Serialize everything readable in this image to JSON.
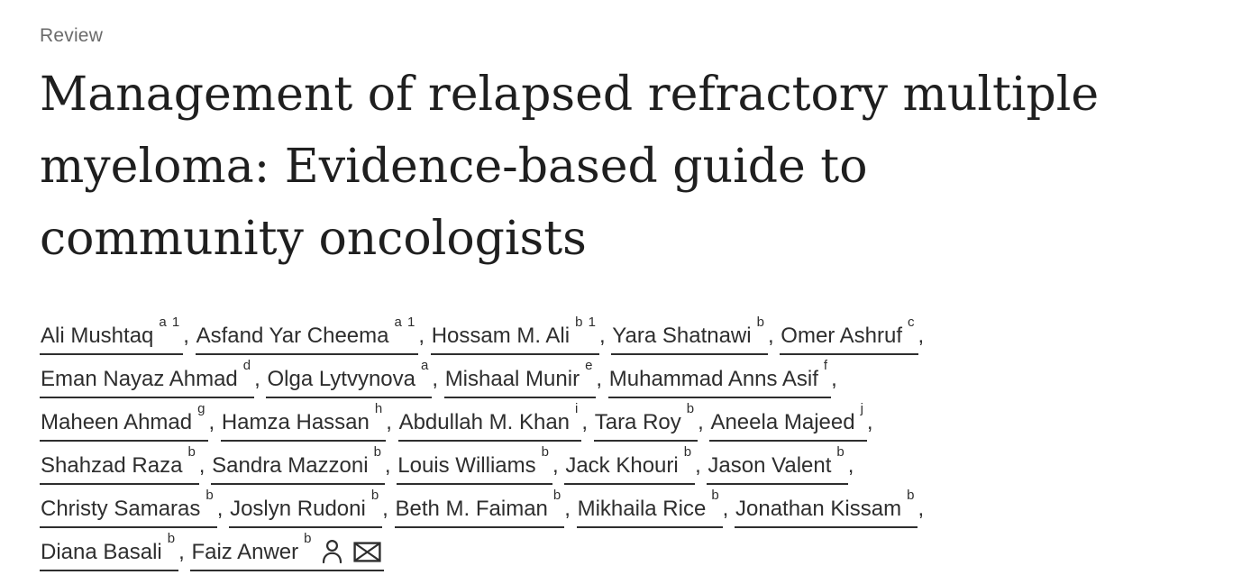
{
  "header": {
    "category_label": "Review"
  },
  "title": {
    "full": "Management of relapsed refractory multiple myeloma: Evidence-based guide to community oncologists",
    "lines": [
      "Management of relapsed refractory multiple",
      "myeloma: Evidence-based guide to",
      "community oncologists"
    ]
  },
  "authors": {
    "separator": ", ",
    "items": [
      {
        "name": "Ali Mushtaq",
        "sup": "a 1"
      },
      {
        "name": "Asfand Yar Cheema",
        "sup": "a 1"
      },
      {
        "name": "Hossam M. Ali",
        "sup": "b 1"
      },
      {
        "name": "Yara Shatnawi",
        "sup": "b"
      },
      {
        "name": "Omer Ashruf",
        "sup": "c",
        "break_after": true
      },
      {
        "name": "Eman Nayaz Ahmad",
        "sup": "d"
      },
      {
        "name": "Olga Lytvynova",
        "sup": "a"
      },
      {
        "name": "Mishaal Munir",
        "sup": "e"
      },
      {
        "name": "Muhammad Anns Asif",
        "sup": "f",
        "break_after": true
      },
      {
        "name": "Maheen Ahmad",
        "sup": "g"
      },
      {
        "name": "Hamza Hassan",
        "sup": "h"
      },
      {
        "name": "Abdullah M. Khan",
        "sup": "i"
      },
      {
        "name": "Tara Roy",
        "sup": "b"
      },
      {
        "name": "Aneela Majeed",
        "sup": "j",
        "break_after": true
      },
      {
        "name": "Shahzad Raza",
        "sup": "b"
      },
      {
        "name": "Sandra Mazzoni",
        "sup": "b"
      },
      {
        "name": "Louis Williams",
        "sup": "b"
      },
      {
        "name": "Jack Khouri",
        "sup": "b"
      },
      {
        "name": "Jason Valent",
        "sup": "b",
        "break_after": true
      },
      {
        "name": "Christy Samaras",
        "sup": "b"
      },
      {
        "name": "Joslyn Rudoni",
        "sup": "b"
      },
      {
        "name": "Beth M. Faiman",
        "sup": "b"
      },
      {
        "name": "Mikhaila Rice",
        "sup": "b"
      },
      {
        "name": "Jonathan Kissam",
        "sup": "b",
        "break_after": true
      },
      {
        "name": "Diana Basali",
        "sup": "b"
      },
      {
        "name": "Faiz Anwer",
        "sup": "b",
        "icons": [
          "person-icon",
          "envelope-icon"
        ]
      }
    ]
  },
  "icons": {
    "person": "person-icon",
    "envelope": "envelope-icon"
  },
  "colors": {
    "background": "#ffffff",
    "title_text": "#1f1f1f",
    "author_text": "#2e2e2e",
    "label_text": "#6b6b6b"
  }
}
